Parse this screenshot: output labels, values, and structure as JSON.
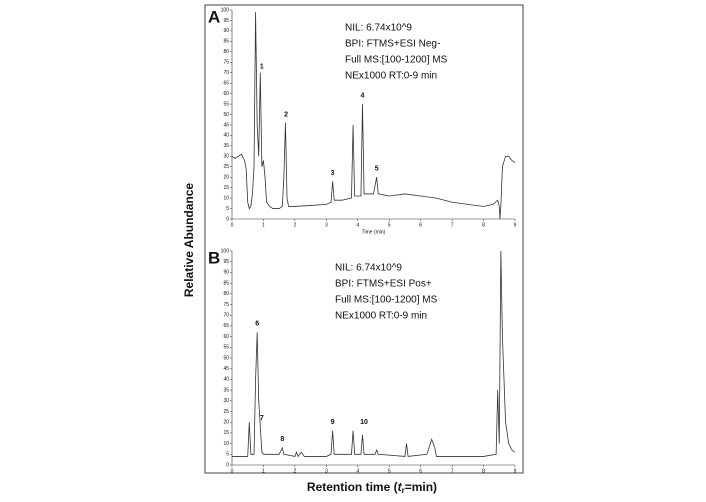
{
  "chart_data": [
    {
      "type": "line",
      "panel": "A",
      "lines": [
        "NIL: 6.74x10^9",
        "BPI: FTMS+ESI Neg-",
        "Full MS:[100-1200] MS",
        "NEx1000 RT:0-9 min"
      ],
      "xlabel": "Time (min)",
      "x": [
        0,
        0.1,
        0.2,
        0.3,
        0.4,
        0.45,
        0.5,
        0.55,
        0.6,
        0.65,
        0.7,
        0.75,
        0.8,
        0.85,
        0.9,
        0.95,
        1.0,
        1.05,
        1.1,
        1.2,
        1.3,
        1.5,
        1.6,
        1.65,
        1.7,
        1.75,
        1.8,
        2,
        2.5,
        3,
        3.15,
        3.2,
        3.25,
        3.5,
        3.8,
        3.85,
        3.9,
        4.1,
        4.15,
        4.2,
        4.5,
        4.6,
        4.65,
        5,
        5.5,
        6,
        6.5,
        7,
        7.5,
        8,
        8.3,
        8.45,
        8.5,
        8.52,
        8.55,
        8.6,
        8.7,
        8.8,
        8.9,
        9
      ],
      "series": [
        {
          "color": "#333333",
          "values": [
            30,
            29,
            30,
            31,
            28,
            24,
            8,
            5,
            6,
            12,
            25,
            99,
            45,
            30,
            70,
            25,
            28,
            20,
            8,
            6,
            5,
            5,
            6,
            20,
            46,
            10,
            6,
            6,
            6.5,
            7,
            8,
            18,
            9,
            9,
            10,
            45,
            11,
            11,
            55,
            12,
            12,
            20,
            12,
            11,
            12,
            11,
            10,
            8,
            7,
            6,
            7,
            9,
            6,
            0,
            6,
            25,
            30,
            30,
            28,
            27
          ]
        }
      ],
      "annotations": [
        {
          "text": "1",
          "x": 0.95,
          "y": 73
        },
        {
          "text": "2",
          "x": 1.72,
          "y": 50
        },
        {
          "text": "3",
          "x": 3.2,
          "y": 22
        },
        {
          "text": "4",
          "x": 4.15,
          "y": 59
        },
        {
          "text": "5",
          "x": 4.6,
          "y": 24
        }
      ],
      "xlim": [
        0,
        9
      ],
      "ylim": [
        0,
        100
      ],
      "xticks": [
        0,
        1,
        2,
        3,
        4,
        5,
        6,
        7,
        8,
        9
      ],
      "yticks": [
        0,
        5,
        10,
        15,
        20,
        25,
        30,
        35,
        40,
        45,
        50,
        55,
        60,
        65,
        70,
        75,
        80,
        85,
        90,
        95,
        100
      ]
    },
    {
      "type": "line",
      "panel": "B",
      "lines": [
        "NIL: 6.74x10^9",
        "BPI: FTMS+ESI Pos+",
        "Full MS:[100-1200] MS",
        "NEx1000 RT:0-9 min"
      ],
      "x": [
        0,
        0.4,
        0.5,
        0.55,
        0.6,
        0.7,
        0.75,
        0.8,
        0.85,
        0.9,
        0.95,
        1.0,
        1.5,
        1.6,
        1.65,
        2.0,
        2.05,
        2.1,
        2.2,
        2.3,
        3,
        3.15,
        3.2,
        3.25,
        3.8,
        3.85,
        3.9,
        4.1,
        4.15,
        4.2,
        4.55,
        4.6,
        4.65,
        5.5,
        5.55,
        5.6,
        6.2,
        6.35,
        6.45,
        6.5,
        7,
        8,
        8.4,
        8.45,
        8.5,
        8.55,
        8.6,
        8.7,
        8.8,
        8.9,
        9
      ],
      "series": [
        {
          "color": "#333333",
          "values": [
            4,
            4,
            4,
            20,
            5,
            5,
            40,
            62,
            30,
            18,
            6,
            5,
            5,
            8,
            5,
            4,
            6,
            4,
            6,
            4,
            4,
            5,
            16,
            5,
            5,
            16,
            5,
            5,
            14,
            5,
            5,
            7,
            5,
            4,
            10,
            4,
            5,
            12,
            8,
            4,
            4,
            4,
            5,
            35,
            10,
            100,
            60,
            20,
            10,
            7,
            6
          ]
        }
      ],
      "annotations": [
        {
          "text": "6",
          "x": 0.8,
          "y": 66
        },
        {
          "text": "7",
          "x": 0.95,
          "y": 22
        },
        {
          "text": "8",
          "x": 1.6,
          "y": 12
        },
        {
          "text": "9",
          "x": 3.2,
          "y": 20
        },
        {
          "text": "10",
          "x": 4.2,
          "y": 20
        }
      ],
      "xlim": [
        0,
        9
      ],
      "ylim": [
        0,
        100
      ],
      "xticks": [
        0,
        1,
        2,
        3,
        4,
        5,
        6,
        7,
        8,
        9
      ],
      "yticks": [
        0,
        5,
        10,
        15,
        20,
        25,
        30,
        35,
        40,
        45,
        50,
        55,
        60,
        65,
        70,
        75,
        80,
        85,
        90,
        95,
        100
      ]
    }
  ],
  "ylabel": "Relative Abundance",
  "xlabel_parts": [
    "Retention time (",
    "t",
    "r",
    "=min)"
  ]
}
